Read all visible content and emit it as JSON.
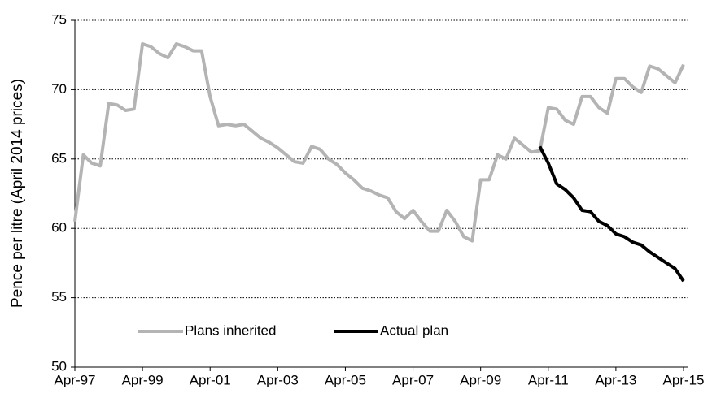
{
  "chart_data": {
    "type": "line",
    "ylabel": "Pence per litre (April 2014 prices)",
    "categories": [
      "Apr-97",
      null,
      null,
      null,
      null,
      null,
      null,
      null,
      "Apr-99",
      null,
      null,
      null,
      null,
      null,
      null,
      null,
      "Apr-01",
      null,
      null,
      null,
      null,
      null,
      null,
      null,
      "Apr-03",
      null,
      null,
      null,
      null,
      null,
      null,
      null,
      "Apr-05",
      null,
      null,
      null,
      null,
      null,
      null,
      null,
      "Apr-07",
      null,
      null,
      null,
      null,
      null,
      null,
      null,
      "Apr-09",
      null,
      null,
      null,
      null,
      null,
      null,
      null,
      "Apr-11",
      null,
      null,
      null,
      null,
      null,
      null,
      null,
      "Apr-13",
      null,
      null,
      null,
      null,
      null,
      null,
      null,
      "Apr-15"
    ],
    "series": [
      {
        "name": "Plans inherited",
        "color": "#b4b4b4",
        "values": [
          60.5,
          65.3,
          64.7,
          64.5,
          69,
          68.9,
          68.5,
          68.6,
          73.3,
          73.1,
          72.6,
          72.3,
          73.3,
          73.1,
          72.8,
          72.8,
          69.5,
          67.4,
          67.5,
          67.4,
          67.5,
          67,
          66.5,
          66.2,
          65.8,
          65.3,
          64.8,
          64.7,
          65.9,
          65.7,
          65,
          64.6,
          64,
          63.5,
          62.9,
          62.7,
          62.4,
          62.2,
          61.2,
          60.7,
          61.3,
          60.5,
          59.8,
          59.8,
          61.3,
          60.5,
          59.4,
          59.1,
          63.5,
          63.5,
          65.3,
          65,
          66.5,
          66,
          65.5,
          65.6,
          68.7,
          68.6,
          67.8,
          67.5,
          69.5,
          69.5,
          68.7,
          68.3,
          70.8,
          70.8,
          70.2,
          69.8,
          71.7,
          71.5,
          71,
          70.5,
          71.8
        ]
      },
      {
        "name": "Actual plan",
        "color": "#000000",
        "values": [
          null,
          null,
          null,
          null,
          null,
          null,
          null,
          null,
          null,
          null,
          null,
          null,
          null,
          null,
          null,
          null,
          null,
          null,
          null,
          null,
          null,
          null,
          null,
          null,
          null,
          null,
          null,
          null,
          null,
          null,
          null,
          null,
          null,
          null,
          null,
          null,
          null,
          null,
          null,
          null,
          null,
          null,
          null,
          null,
          null,
          null,
          null,
          null,
          null,
          null,
          null,
          null,
          null,
          null,
          null,
          65.9,
          64.7,
          63.2,
          62.8,
          62.2,
          61.3,
          61.2,
          60.5,
          60.2,
          59.6,
          59.4,
          59,
          58.8,
          58.3,
          57.9,
          57.5,
          57.1,
          56.2
        ]
      }
    ],
    "ylim": [
      50,
      75
    ],
    "yticks": [
      50,
      55,
      60,
      65,
      70,
      75
    ],
    "grid": true,
    "legend": "lower left"
  }
}
